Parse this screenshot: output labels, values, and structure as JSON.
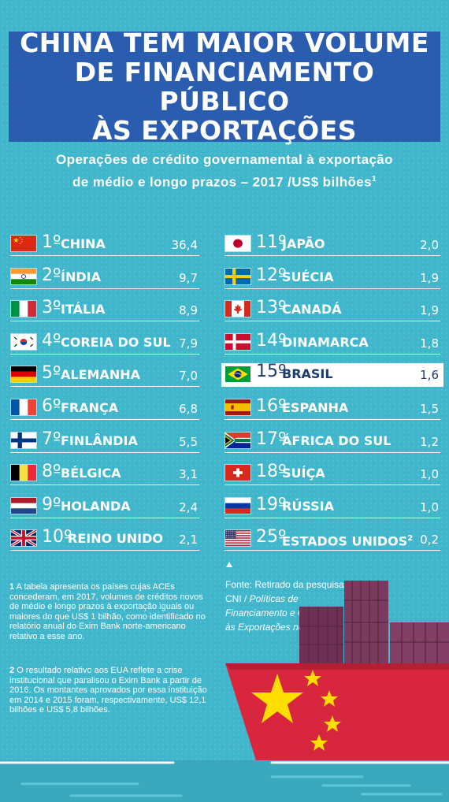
{
  "title_lines": [
    "CHINA TEM MAIOR VOLUME",
    "DE FINANCIAMENTO PÚBLICO",
    "ÀS EXPORTAÇÕES"
  ],
  "subtitle_lines": [
    "Operações de crédito governamental à exportação",
    "de médio e longo prazos – 2017 /US$ bilhões"
  ],
  "subtitle_sup": "1",
  "colors": {
    "background": "#40b6cc",
    "title_box": "#2a5db0",
    "highlight_text": "#1d3b6e",
    "ship_red": "#d7263d",
    "containers": "#7b3b5e"
  },
  "chart_data": {
    "type": "table",
    "title": "CHINA TEM MAIOR VOLUME DE FINANCIAMENTO PÚBLICO ÀS EXPORTAÇÕES",
    "subtitle": "Operações de crédito governamental à exportação de médio e longo prazos – 2017 /US$ bilhões",
    "unit": "US$ bilhões",
    "rows": [
      {
        "rank": "1º",
        "country": "CHINA",
        "value": 36.4,
        "value_label": "36,4",
        "flag": "cn"
      },
      {
        "rank": "2º",
        "country": "ÍNDIA",
        "value": 9.7,
        "value_label": "9,7",
        "flag": "in"
      },
      {
        "rank": "3º",
        "country": "ITÁLIA",
        "value": 8.9,
        "value_label": "8,9",
        "flag": "it"
      },
      {
        "rank": "4º",
        "country": "COREIA DO SUL",
        "value": 7.9,
        "value_label": "7,9",
        "flag": "kr"
      },
      {
        "rank": "5º",
        "country": "ALEMANHA",
        "value": 7.0,
        "value_label": "7,0",
        "flag": "de"
      },
      {
        "rank": "6º",
        "country": "FRANÇA",
        "value": 6.8,
        "value_label": "6,8",
        "flag": "fr"
      },
      {
        "rank": "7º",
        "country": "FINLÂNDIA",
        "value": 5.5,
        "value_label": "5,5",
        "flag": "fi"
      },
      {
        "rank": "8º",
        "country": "BÉLGICA",
        "value": 3.1,
        "value_label": "3,1",
        "flag": "be"
      },
      {
        "rank": "9º",
        "country": "HOLANDA",
        "value": 2.4,
        "value_label": "2,4",
        "flag": "nl"
      },
      {
        "rank": "10º",
        "country": "REINO UNIDO",
        "value": 2.1,
        "value_label": "2,1",
        "flag": "gb"
      },
      {
        "rank": "11º",
        "country": "JAPÃO",
        "value": 2.0,
        "value_label": "2,0",
        "flag": "jp"
      },
      {
        "rank": "12º",
        "country": "SUÉCIA",
        "value": 1.9,
        "value_label": "1,9",
        "flag": "se"
      },
      {
        "rank": "13º",
        "country": "CANADÁ",
        "value": 1.9,
        "value_label": "1,9",
        "flag": "ca"
      },
      {
        "rank": "14º",
        "country": "DINAMARCA",
        "value": 1.8,
        "value_label": "1,8",
        "flag": "dk"
      },
      {
        "rank": "15º",
        "country": "BRASIL",
        "value": 1.6,
        "value_label": "1,6",
        "flag": "br",
        "highlight": true
      },
      {
        "rank": "16º",
        "country": "ESPANHA",
        "value": 1.5,
        "value_label": "1,5",
        "flag": "es"
      },
      {
        "rank": "17º",
        "country": "ÁFRICA DO SUL",
        "value": 1.2,
        "value_label": "1,2",
        "flag": "za"
      },
      {
        "rank": "18º",
        "country": "SUÍÇA",
        "value": 1.0,
        "value_label": "1,0",
        "flag": "ch"
      },
      {
        "rank": "19º",
        "country": "RÚSSIA",
        "value": 1.0,
        "value_label": "1,0",
        "flag": "ru"
      },
      {
        "rank": "25º",
        "country": "ESTADOS UNIDOS",
        "country_sup": "2",
        "value": 0.2,
        "value_label": "0,2",
        "flag": "us"
      }
    ]
  },
  "notes": [
    {
      "num": "1",
      "text": "A tabela apresenta os países cujas ACEs concederam, em 2017, volumes de créditos novos de médio e longo prazos à exportação iguais ou maiores do que US$ 1 bilhão, como identificado no relatório anual do Exim Bank norte-americano relativo a esse ano."
    },
    {
      "num": "2",
      "text": "O resultado relativo aos EUA reflete a crise institucional que paralisou o Exim Bank a partir de 2016. Os montantes aprovados por essa instituição em 2014 e 2015 foram, respectivamente, US$ 12,1 bilhões e US$ 5,8 bilhões."
    }
  ],
  "source": {
    "prefix": "Fonte: Retirado da pesquisa CNI / ",
    "italic": "Políticas de Financiamento e Garantias às Exportações no Mundo"
  }
}
